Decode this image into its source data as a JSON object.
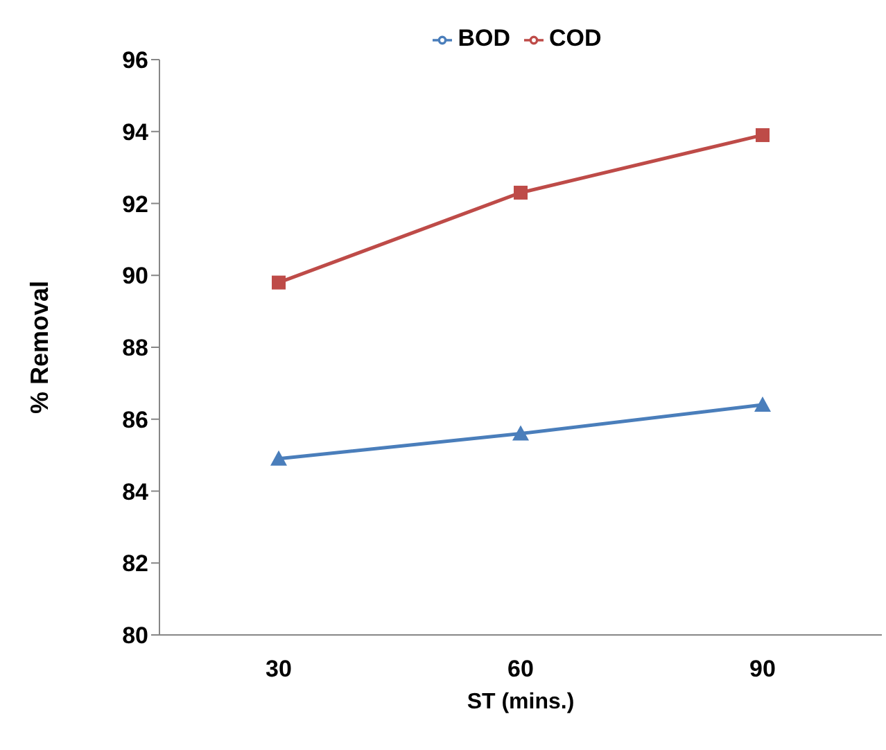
{
  "chart_data": {
    "type": "line",
    "xlabel": "ST (mins.)",
    "ylabel": "% Removal",
    "categories": [
      "30",
      "60",
      "90"
    ],
    "series": [
      {
        "name": "BOD",
        "color": "#4a7ebb",
        "marker": "triangle",
        "values": [
          84.9,
          85.6,
          86.4
        ]
      },
      {
        "name": "COD",
        "color": "#be4b48",
        "marker": "square",
        "values": [
          89.8,
          92.3,
          93.9
        ]
      }
    ],
    "ylim": [
      80,
      96
    ],
    "yticks": [
      80,
      82,
      84,
      86,
      88,
      90,
      92,
      94,
      96
    ],
    "grid": false,
    "legend": "top"
  }
}
